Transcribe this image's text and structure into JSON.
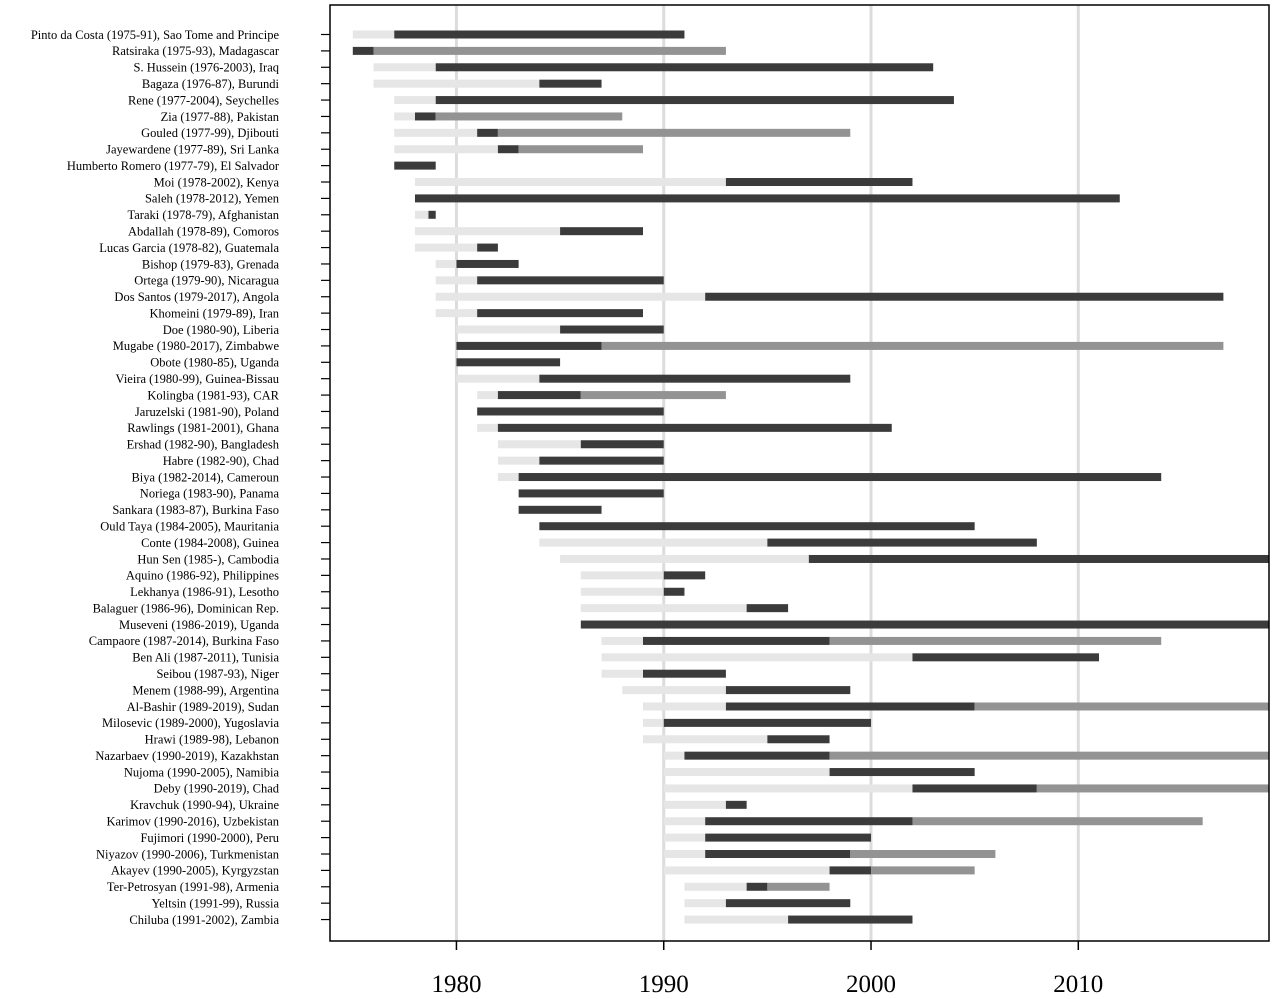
{
  "chart_data": {
    "type": "bar",
    "subtype": "timeline",
    "title": "",
    "xlabel": "",
    "ylabel": "",
    "xlim": [
      1973.9,
      2019.2
    ],
    "x_ticks": [
      1980,
      1990,
      2000,
      2010
    ],
    "grid": "vertical",
    "legend": "none",
    "colors": {
      "light": "#e6e6e6",
      "dark": "#3b3b3b",
      "mid": "#939393",
      "grid": "#dcdcdc",
      "axis": "#000000"
    },
    "segment_note": "each row: light/dark/mid spans in years",
    "rows": [
      {
        "label": "Pinto da Costa (1975-91), Sao Tome and Principe",
        "segments": [
          [
            "light",
            1975,
            1977
          ],
          [
            "dark",
            1977,
            1991
          ]
        ]
      },
      {
        "label": "Ratsiraka (1975-93), Madagascar",
        "segments": [
          [
            "dark",
            1975,
            1976
          ],
          [
            "mid",
            1976,
            1993
          ]
        ]
      },
      {
        "label": "S. Hussein (1976-2003), Iraq",
        "segments": [
          [
            "light",
            1976,
            1979
          ],
          [
            "dark",
            1979,
            2003
          ]
        ]
      },
      {
        "label": "Bagaza (1976-87), Burundi",
        "segments": [
          [
            "light",
            1976,
            1984
          ],
          [
            "dark",
            1984,
            1987
          ]
        ]
      },
      {
        "label": "Rene (1977-2004), Seychelles",
        "segments": [
          [
            "light",
            1977,
            1979
          ],
          [
            "dark",
            1979,
            2004
          ]
        ]
      },
      {
        "label": "Zia (1977-88), Pakistan",
        "segments": [
          [
            "light",
            1977,
            1978
          ],
          [
            "dark",
            1978,
            1979
          ],
          [
            "mid",
            1979,
            1988
          ]
        ]
      },
      {
        "label": "Gouled (1977-99), Djibouti",
        "segments": [
          [
            "light",
            1977,
            1981
          ],
          [
            "dark",
            1981,
            1982
          ],
          [
            "mid",
            1982,
            1999
          ]
        ]
      },
      {
        "label": "Jayewardene (1977-89), Sri Lanka",
        "segments": [
          [
            "light",
            1977,
            1982
          ],
          [
            "dark",
            1982,
            1983
          ],
          [
            "mid",
            1983,
            1989
          ]
        ]
      },
      {
        "label": "Humberto Romero (1977-79), El Salvador",
        "segments": [
          [
            "dark",
            1977,
            1979
          ]
        ]
      },
      {
        "label": "Moi (1978-2002), Kenya",
        "segments": [
          [
            "light",
            1978,
            1993
          ],
          [
            "dark",
            1993,
            2002
          ]
        ]
      },
      {
        "label": "Saleh (1978-2012), Yemen",
        "segments": [
          [
            "dark",
            1978,
            2012
          ]
        ]
      },
      {
        "label": "Taraki (1978-79), Afghanistan",
        "segments": [
          [
            "light",
            1978,
            1978.65
          ],
          [
            "dark",
            1978.65,
            1979
          ]
        ]
      },
      {
        "label": "Abdallah (1978-89), Comoros",
        "segments": [
          [
            "light",
            1978,
            1985
          ],
          [
            "dark",
            1985,
            1989
          ]
        ]
      },
      {
        "label": "Lucas Garcia (1978-82), Guatemala",
        "segments": [
          [
            "light",
            1978,
            1981
          ],
          [
            "dark",
            1981,
            1982
          ]
        ]
      },
      {
        "label": "Bishop (1979-83), Grenada",
        "segments": [
          [
            "light",
            1979,
            1980
          ],
          [
            "dark",
            1980,
            1983
          ]
        ]
      },
      {
        "label": "Ortega (1979-90), Nicaragua",
        "segments": [
          [
            "light",
            1979,
            1981
          ],
          [
            "dark",
            1981,
            1990
          ]
        ]
      },
      {
        "label": "Dos Santos (1979-2017), Angola",
        "segments": [
          [
            "light",
            1979,
            1992
          ],
          [
            "dark",
            1992,
            2017
          ]
        ]
      },
      {
        "label": "Khomeini (1979-89), Iran",
        "segments": [
          [
            "light",
            1979,
            1981
          ],
          [
            "dark",
            1981,
            1989
          ]
        ]
      },
      {
        "label": "Doe (1980-90), Liberia",
        "segments": [
          [
            "light",
            1980,
            1985
          ],
          [
            "dark",
            1985,
            1990
          ]
        ]
      },
      {
        "label": "Mugabe (1980-2017), Zimbabwe",
        "segments": [
          [
            "dark",
            1980,
            1987
          ],
          [
            "mid",
            1987,
            2017
          ]
        ]
      },
      {
        "label": "Obote (1980-85), Uganda",
        "segments": [
          [
            "dark",
            1980,
            1985
          ]
        ]
      },
      {
        "label": "Vieira (1980-99), Guinea-Bissau",
        "segments": [
          [
            "light",
            1980,
            1984
          ],
          [
            "dark",
            1984,
            1999
          ]
        ]
      },
      {
        "label": "Kolingba (1981-93), CAR",
        "segments": [
          [
            "light",
            1981,
            1982
          ],
          [
            "dark",
            1982,
            1986
          ],
          [
            "mid",
            1986,
            1993
          ]
        ]
      },
      {
        "label": "Jaruzelski (1981-90), Poland",
        "segments": [
          [
            "dark",
            1981,
            1990
          ]
        ]
      },
      {
        "label": "Rawlings (1981-2001), Ghana",
        "segments": [
          [
            "light",
            1981,
            1982
          ],
          [
            "dark",
            1982,
            2001
          ]
        ]
      },
      {
        "label": "Ershad (1982-90), Bangladesh",
        "segments": [
          [
            "light",
            1982,
            1986
          ],
          [
            "dark",
            1986,
            1990
          ]
        ]
      },
      {
        "label": "Habre (1982-90), Chad",
        "segments": [
          [
            "light",
            1982,
            1984
          ],
          [
            "dark",
            1984,
            1990
          ]
        ]
      },
      {
        "label": "Biya (1982-2014), Cameroun",
        "segments": [
          [
            "light",
            1982,
            1983
          ],
          [
            "dark",
            1983,
            2014
          ]
        ]
      },
      {
        "label": "Noriega (1983-90), Panama",
        "segments": [
          [
            "dark",
            1983,
            1990
          ]
        ]
      },
      {
        "label": "Sankara (1983-87), Burkina Faso",
        "segments": [
          [
            "dark",
            1983,
            1987
          ]
        ]
      },
      {
        "label": "Ould Taya (1984-2005), Mauritania",
        "segments": [
          [
            "dark",
            1984,
            2005
          ]
        ]
      },
      {
        "label": "Conte (1984-2008), Guinea",
        "segments": [
          [
            "light",
            1984,
            1995
          ],
          [
            "dark",
            1995,
            2008
          ]
        ]
      },
      {
        "label": "Hun Sen (1985-), Cambodia",
        "segments": [
          [
            "light",
            1985,
            1997
          ],
          [
            "dark",
            1997,
            2019.2
          ]
        ]
      },
      {
        "label": "Aquino (1986-92), Philippines",
        "segments": [
          [
            "light",
            1986,
            1990
          ],
          [
            "dark",
            1990,
            1992
          ]
        ]
      },
      {
        "label": "Lekhanya (1986-91), Lesotho",
        "segments": [
          [
            "light",
            1986,
            1990
          ],
          [
            "dark",
            1990,
            1991
          ]
        ]
      },
      {
        "label": "Balaguer (1986-96), Dominican Rep.",
        "segments": [
          [
            "light",
            1986,
            1994
          ],
          [
            "dark",
            1994,
            1996
          ]
        ]
      },
      {
        "label": "Museveni (1986-2019), Uganda",
        "segments": [
          [
            "dark",
            1986,
            2019.2
          ]
        ]
      },
      {
        "label": "Campaore (1987-2014), Burkina Faso",
        "segments": [
          [
            "light",
            1987,
            1989
          ],
          [
            "dark",
            1989,
            1998
          ],
          [
            "mid",
            1998,
            2014
          ]
        ]
      },
      {
        "label": "Ben Ali (1987-2011), Tunisia",
        "segments": [
          [
            "light",
            1987,
            2002
          ],
          [
            "dark",
            2002,
            2011
          ]
        ]
      },
      {
        "label": "Seibou (1987-93), Niger",
        "segments": [
          [
            "light",
            1987,
            1989
          ],
          [
            "dark",
            1989,
            1993
          ]
        ]
      },
      {
        "label": "Menem (1988-99), Argentina",
        "segments": [
          [
            "light",
            1988,
            1993
          ],
          [
            "dark",
            1993,
            1999
          ]
        ]
      },
      {
        "label": "Al-Bashir (1989-2019), Sudan",
        "segments": [
          [
            "light",
            1989,
            1993
          ],
          [
            "dark",
            1993,
            2005
          ],
          [
            "mid",
            2005,
            2019.2
          ]
        ]
      },
      {
        "label": "Milosevic (1989-2000), Yugoslavia",
        "segments": [
          [
            "light",
            1989,
            1990
          ],
          [
            "dark",
            1990,
            2000
          ]
        ]
      },
      {
        "label": "Hrawi (1989-98), Lebanon",
        "segments": [
          [
            "light",
            1989,
            1995
          ],
          [
            "dark",
            1995,
            1998
          ]
        ]
      },
      {
        "label": "Nazarbaev (1990-2019), Kazakhstan",
        "segments": [
          [
            "light",
            1990,
            1991
          ],
          [
            "dark",
            1991,
            1998
          ],
          [
            "mid",
            1998,
            2019.2
          ]
        ]
      },
      {
        "label": "Nujoma (1990-2005), Namibia",
        "segments": [
          [
            "light",
            1990,
            1998
          ],
          [
            "dark",
            1998,
            2005
          ]
        ]
      },
      {
        "label": "Deby (1990-2019), Chad",
        "segments": [
          [
            "light",
            1990,
            2002
          ],
          [
            "dark",
            2002,
            2008
          ],
          [
            "mid",
            2008,
            2019.2
          ]
        ]
      },
      {
        "label": "Kravchuk (1990-94), Ukraine",
        "segments": [
          [
            "light",
            1990,
            1993
          ],
          [
            "dark",
            1993,
            1994
          ]
        ]
      },
      {
        "label": "Karimov (1990-2016), Uzbekistan",
        "segments": [
          [
            "light",
            1990,
            1992
          ],
          [
            "dark",
            1992,
            2002
          ],
          [
            "mid",
            2002,
            2016
          ]
        ]
      },
      {
        "label": "Fujimori (1990-2000), Peru",
        "segments": [
          [
            "light",
            1990,
            1992
          ],
          [
            "dark",
            1992,
            2000
          ]
        ]
      },
      {
        "label": "Niyazov (1990-2006), Turkmenistan",
        "segments": [
          [
            "light",
            1990,
            1992
          ],
          [
            "dark",
            1992,
            1999
          ],
          [
            "mid",
            1999,
            2006
          ]
        ]
      },
      {
        "label": "Akayev (1990-2005), Kyrgyzstan",
        "segments": [
          [
            "light",
            1990,
            1998
          ],
          [
            "dark",
            1998,
            2000
          ],
          [
            "mid",
            2000,
            2005
          ]
        ]
      },
      {
        "label": "Ter-Petrosyan (1991-98), Armenia",
        "segments": [
          [
            "light",
            1991,
            1994
          ],
          [
            "dark",
            1994,
            1995
          ],
          [
            "mid",
            1995,
            1998
          ]
        ]
      },
      {
        "label": "Yeltsin (1991-99), Russia",
        "segments": [
          [
            "light",
            1991,
            1993
          ],
          [
            "dark",
            1993,
            1999
          ]
        ]
      },
      {
        "label": "Chiluba (1991-2002), Zambia",
        "segments": [
          [
            "light",
            1991,
            1996
          ],
          [
            "dark",
            1996,
            2002
          ]
        ]
      }
    ]
  }
}
